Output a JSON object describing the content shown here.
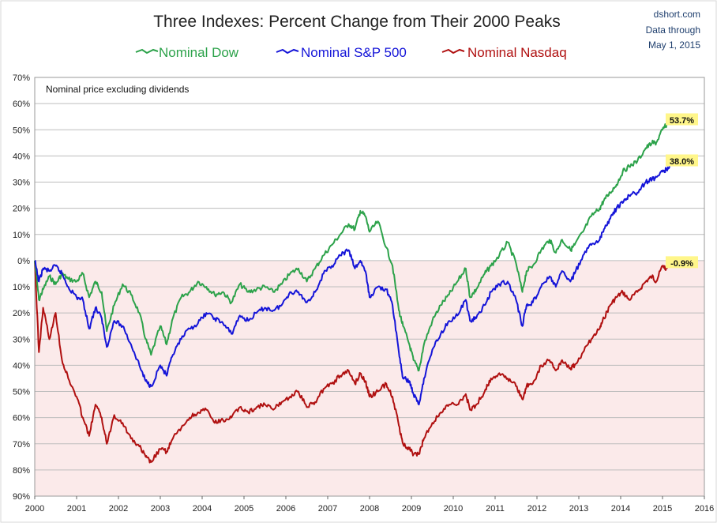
{
  "header": {
    "title": "Three Indexes: Percent Change from Their 2000 Peaks",
    "source": "dshort.com",
    "data_through_label": "Data through",
    "data_through_date": "May 1, 2015"
  },
  "colors": {
    "dow": "#2ca24a",
    "sp500": "#1414d8",
    "nasdaq": "#b01010",
    "negative_region": "#fbeaea",
    "gridline": "#bdbdbd",
    "callout_bg": "#fff68a"
  },
  "chart_data": {
    "type": "line",
    "title": "Three Indexes: Percent Change from Their 2000 Peaks",
    "subtitle": "Nominal price excluding dividends",
    "xlabel": "",
    "ylabel": "",
    "xlim": [
      2000,
      2016
    ],
    "ylim": [
      -90,
      70
    ],
    "grid": true,
    "legend_position": "top",
    "x_ticks": [
      "2000",
      "2001",
      "2002",
      "2003",
      "2004",
      "2005",
      "2006",
      "2007",
      "2008",
      "2009",
      "2010",
      "2011",
      "2012",
      "2013",
      "2014",
      "2015",
      "2016"
    ],
    "y_ticks": [
      {
        "value": 70,
        "label": "70%"
      },
      {
        "value": 60,
        "label": "60%"
      },
      {
        "value": 50,
        "label": "50%"
      },
      {
        "value": 40,
        "label": "40%"
      },
      {
        "value": 30,
        "label": "30%"
      },
      {
        "value": 20,
        "label": "20%"
      },
      {
        "value": 10,
        "label": "10%"
      },
      {
        "value": 0,
        "label": "0%"
      },
      {
        "value": -10,
        "label": "10%"
      },
      {
        "value": -20,
        "label": "20%"
      },
      {
        "value": -30,
        "label": "30%"
      },
      {
        "value": -40,
        "label": "40%"
      },
      {
        "value": -50,
        "label": "50%"
      },
      {
        "value": -60,
        "label": "60%"
      },
      {
        "value": -70,
        "label": "70%"
      },
      {
        "value": -80,
        "label": "80%"
      },
      {
        "value": -90,
        "label": "90%"
      }
    ],
    "series": [
      {
        "name": "Nominal Dow",
        "color": "#2ca24a",
        "end_label": "53.7%",
        "x": [
          2000.0,
          2000.1,
          2000.2,
          2000.35,
          2000.5,
          2000.65,
          2000.8,
          2001.0,
          2001.15,
          2001.3,
          2001.45,
          2001.6,
          2001.72,
          2001.9,
          2002.1,
          2002.3,
          2002.5,
          2002.65,
          2002.78,
          2003.0,
          2003.15,
          2003.3,
          2003.5,
          2003.7,
          2003.9,
          2004.1,
          2004.3,
          2004.5,
          2004.7,
          2004.9,
          2005.1,
          2005.3,
          2005.5,
          2005.7,
          2005.9,
          2006.1,
          2006.3,
          2006.5,
          2006.7,
          2006.9,
          2007.1,
          2007.3,
          2007.5,
          2007.65,
          2007.78,
          2007.9,
          2008.0,
          2008.2,
          2008.4,
          2008.55,
          2008.7,
          2008.8,
          2008.95,
          2009.05,
          2009.18,
          2009.3,
          2009.5,
          2009.7,
          2009.9,
          2010.1,
          2010.3,
          2010.4,
          2010.55,
          2010.75,
          2010.9,
          2011.1,
          2011.3,
          2011.5,
          2011.65,
          2011.75,
          2011.9,
          2012.1,
          2012.3,
          2012.45,
          2012.6,
          2012.8,
          2012.9,
          2013.1,
          2013.3,
          2013.5,
          2013.6,
          2013.75,
          2013.9,
          2014.05,
          2014.2,
          2014.4,
          2014.6,
          2014.75,
          2014.85,
          2015.0,
          2015.1,
          2015.2,
          2015.33
        ],
        "values": [
          0,
          -15,
          -11,
          -6,
          -9,
          -5,
          -7,
          -8,
          -5,
          -14,
          -8,
          -12,
          -27,
          -17,
          -9,
          -13,
          -20,
          -30,
          -36,
          -25,
          -32,
          -22,
          -14,
          -12,
          -8,
          -10,
          -13,
          -12,
          -16,
          -9,
          -12,
          -11,
          -10,
          -12,
          -9,
          -5,
          -3,
          -8,
          -3,
          2,
          6,
          10,
          14,
          12,
          19,
          17,
          11,
          15,
          5,
          -2,
          -19,
          -25,
          -32,
          -38,
          -42,
          -32,
          -23,
          -17,
          -13,
          -8,
          -3,
          -14,
          -11,
          -5,
          -2,
          2,
          7,
          -1,
          -12,
          -4,
          -2,
          4,
          8,
          3,
          8,
          4,
          6,
          11,
          17,
          20,
          23,
          26,
          29,
          34,
          36,
          38,
          43,
          45,
          45,
          50,
          52,
          54,
          53.7
        ]
      },
      {
        "name": "Nominal S&P 500",
        "color": "#1414d8",
        "end_label": "38.0%",
        "x": [
          2000.0,
          2000.1,
          2000.2,
          2000.35,
          2000.5,
          2000.65,
          2000.8,
          2001.0,
          2001.15,
          2001.3,
          2001.45,
          2001.6,
          2001.72,
          2001.9,
          2002.1,
          2002.3,
          2002.5,
          2002.65,
          2002.78,
          2003.0,
          2003.15,
          2003.3,
          2003.5,
          2003.7,
          2003.9,
          2004.1,
          2004.3,
          2004.5,
          2004.7,
          2004.9,
          2005.1,
          2005.3,
          2005.5,
          2005.7,
          2005.9,
          2006.1,
          2006.3,
          2006.5,
          2006.7,
          2006.9,
          2007.1,
          2007.3,
          2007.5,
          2007.65,
          2007.78,
          2007.9,
          2008.0,
          2008.2,
          2008.4,
          2008.55,
          2008.7,
          2008.8,
          2008.95,
          2009.05,
          2009.18,
          2009.3,
          2009.5,
          2009.7,
          2009.9,
          2010.1,
          2010.3,
          2010.4,
          2010.55,
          2010.75,
          2010.9,
          2011.1,
          2011.3,
          2011.5,
          2011.65,
          2011.75,
          2011.9,
          2012.1,
          2012.3,
          2012.45,
          2012.6,
          2012.8,
          2012.9,
          2013.1,
          2013.3,
          2013.5,
          2013.6,
          2013.75,
          2013.9,
          2014.05,
          2014.2,
          2014.4,
          2014.6,
          2014.75,
          2014.85,
          2015.0,
          2015.1,
          2015.2,
          2015.33
        ],
        "values": [
          0,
          -8,
          -3,
          -4,
          -2,
          -5,
          -10,
          -14,
          -15,
          -26,
          -18,
          -22,
          -33,
          -23,
          -25,
          -32,
          -40,
          -46,
          -48,
          -40,
          -44,
          -36,
          -30,
          -26,
          -24,
          -20,
          -22,
          -24,
          -28,
          -21,
          -23,
          -20,
          -18,
          -19,
          -17,
          -12,
          -12,
          -16,
          -12,
          -5,
          -2,
          2,
          4,
          -3,
          0,
          -4,
          -14,
          -10,
          -11,
          -17,
          -35,
          -45,
          -46,
          -51,
          -55,
          -45,
          -34,
          -28,
          -23,
          -21,
          -15,
          -23,
          -22,
          -17,
          -12,
          -9,
          -8,
          -15,
          -25,
          -17,
          -16,
          -10,
          -6,
          -10,
          -4,
          -8,
          -5,
          2,
          6,
          8,
          12,
          16,
          20,
          22,
          25,
          26,
          30,
          31,
          32,
          34,
          35,
          37,
          38.0
        ]
      },
      {
        "name": "Nominal Nasdaq",
        "color": "#b01010",
        "end_label": "-0.9%",
        "x": [
          2000.0,
          2000.1,
          2000.2,
          2000.35,
          2000.5,
          2000.65,
          2000.8,
          2001.0,
          2001.15,
          2001.3,
          2001.45,
          2001.6,
          2001.72,
          2001.9,
          2002.1,
          2002.3,
          2002.5,
          2002.65,
          2002.78,
          2003.0,
          2003.15,
          2003.3,
          2003.5,
          2003.7,
          2003.9,
          2004.1,
          2004.3,
          2004.5,
          2004.7,
          2004.9,
          2005.1,
          2005.3,
          2005.5,
          2005.7,
          2005.9,
          2006.1,
          2006.3,
          2006.5,
          2006.7,
          2006.9,
          2007.1,
          2007.3,
          2007.5,
          2007.65,
          2007.78,
          2007.9,
          2008.0,
          2008.2,
          2008.4,
          2008.55,
          2008.7,
          2008.8,
          2008.95,
          2009.05,
          2009.18,
          2009.3,
          2009.5,
          2009.7,
          2009.9,
          2010.1,
          2010.3,
          2010.4,
          2010.55,
          2010.75,
          2010.9,
          2011.1,
          2011.3,
          2011.5,
          2011.65,
          2011.75,
          2011.9,
          2012.1,
          2012.3,
          2012.45,
          2012.6,
          2012.8,
          2012.9,
          2013.1,
          2013.3,
          2013.5,
          2013.6,
          2013.75,
          2013.9,
          2014.05,
          2014.2,
          2014.4,
          2014.6,
          2014.75,
          2014.85,
          2015.0,
          2015.1,
          2015.2,
          2015.33
        ],
        "values": [
          0,
          -35,
          -18,
          -30,
          -20,
          -38,
          -45,
          -52,
          -60,
          -67,
          -55,
          -60,
          -70,
          -59,
          -62,
          -68,
          -71,
          -75,
          -77,
          -72,
          -73,
          -68,
          -64,
          -60,
          -58,
          -57,
          -62,
          -61,
          -60,
          -56,
          -58,
          -56,
          -55,
          -57,
          -54,
          -52,
          -50,
          -56,
          -54,
          -49,
          -47,
          -44,
          -42,
          -47,
          -43,
          -46,
          -52,
          -50,
          -47,
          -52,
          -63,
          -70,
          -72,
          -74,
          -74,
          -68,
          -62,
          -58,
          -55,
          -55,
          -51,
          -57,
          -55,
          -50,
          -45,
          -43,
          -45,
          -48,
          -53,
          -48,
          -47,
          -40,
          -38,
          -42,
          -38,
          -41,
          -40,
          -35,
          -30,
          -26,
          -22,
          -17,
          -14,
          -12,
          -15,
          -12,
          -8,
          -6,
          -8,
          -2,
          -3,
          0,
          -0.9
        ]
      }
    ]
  }
}
